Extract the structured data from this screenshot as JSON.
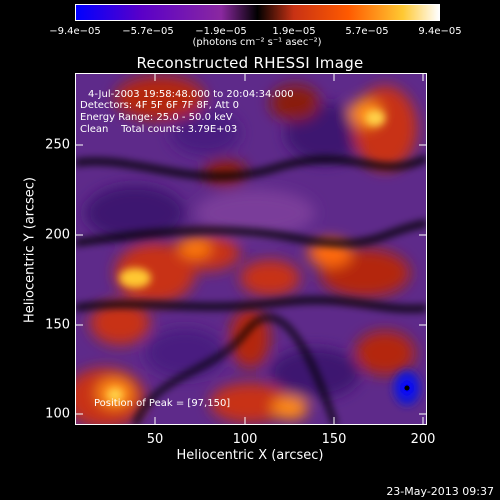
{
  "colorbar": {
    "ticks": [
      "−9.4e−05",
      "−5.7e−05",
      "−1.9e−05",
      "1.9e−05",
      "5.7e−05",
      "9.4e−05"
    ],
    "unit_label": "(photons cm⁻² s⁻¹ asec⁻²)",
    "colors": [
      "#0000ff",
      "#5a00c8",
      "#8a28a0",
      "#c83214",
      "#ff5a00",
      "#ffc832",
      "#ffffff"
    ]
  },
  "title": "Reconstructed RHESSI Image",
  "info": {
    "time": "4-Jul-2003 19:58:48.000 to 20:04:34.000",
    "detectors": "Detectors: 4F 5F 6F 7F 8F, Att 0",
    "energy": "Energy Range: 25.0 - 50.0 keV",
    "clean": "Clean    Total counts: 3.79E+03",
    "peak": "Position of Peak = [97,150]"
  },
  "axes": {
    "xlabel": "Heliocentric X (arcsec)",
    "ylabel": "Heliocentric Y (arcsec)",
    "xticks": [
      "50",
      "100",
      "150",
      "200"
    ],
    "yticks": [
      "100",
      "150",
      "200",
      "250"
    ]
  },
  "timestamp": "23-May-2013 09:37"
}
